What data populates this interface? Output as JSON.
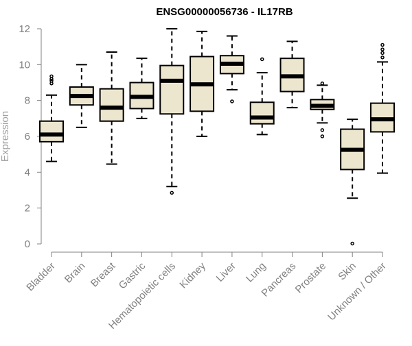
{
  "chart_data": {
    "type": "boxplot",
    "title": "ENSG00000056736 - IL17RB",
    "xlabel": "",
    "ylabel": "Expression",
    "ylim": [
      0,
      12
    ],
    "yticks": [
      0,
      2,
      4,
      6,
      8,
      10,
      12
    ],
    "grid": false,
    "legend": "none",
    "colors": {
      "box_fill": "#ede6cf",
      "stroke": "#000000",
      "axis": "#808080"
    },
    "categories": [
      "Bladder",
      "Brain",
      "Breast",
      "Gastric",
      "Hematopoietic cells",
      "Kidney",
      "Liver",
      "Lung",
      "Pancreas",
      "Prostate",
      "Skin",
      "Unknown / Other"
    ],
    "boxes": [
      {
        "name": "Bladder",
        "whisker_low": 4.6,
        "q1": 5.7,
        "median": 6.1,
        "q3": 6.85,
        "whisker_high": 8.3,
        "outliers": [
          8.95,
          9.1,
          9.2,
          9.35
        ]
      },
      {
        "name": "Brain",
        "whisker_low": 6.5,
        "q1": 7.75,
        "median": 8.25,
        "q3": 8.75,
        "whisker_high": 10.0,
        "outliers": []
      },
      {
        "name": "Breast",
        "whisker_low": 4.45,
        "q1": 6.85,
        "median": 7.6,
        "q3": 8.65,
        "whisker_high": 10.7,
        "outliers": []
      },
      {
        "name": "Gastric",
        "whisker_low": 7.0,
        "q1": 7.55,
        "median": 8.2,
        "q3": 9.0,
        "whisker_high": 10.35,
        "outliers": []
      },
      {
        "name": "Hematopoietic cells",
        "whisker_low": 3.2,
        "q1": 7.25,
        "median": 9.1,
        "q3": 9.95,
        "whisker_high": 12.0,
        "outliers": [
          2.85
        ]
      },
      {
        "name": "Kidney",
        "whisker_low": 6.0,
        "q1": 7.4,
        "median": 8.9,
        "q3": 10.45,
        "whisker_high": 11.85,
        "outliers": []
      },
      {
        "name": "Liver",
        "whisker_low": 8.6,
        "q1": 9.5,
        "median": 10.05,
        "q3": 10.5,
        "whisker_high": 11.6,
        "outliers": [
          7.95
        ]
      },
      {
        "name": "Lung",
        "whisker_low": 6.1,
        "q1": 6.7,
        "median": 7.05,
        "q3": 7.9,
        "whisker_high": 9.55,
        "outliers": [
          10.3
        ]
      },
      {
        "name": "Pancreas",
        "whisker_low": 7.6,
        "q1": 8.5,
        "median": 9.35,
        "q3": 10.35,
        "whisker_high": 11.3,
        "outliers": []
      },
      {
        "name": "Prostate",
        "whisker_low": 6.75,
        "q1": 7.5,
        "median": 7.7,
        "q3": 8.05,
        "whisker_high": 8.85,
        "outliers": [
          8.95,
          6.35,
          6.0
        ]
      },
      {
        "name": "Skin",
        "whisker_low": 2.55,
        "q1": 4.15,
        "median": 5.25,
        "q3": 6.4,
        "whisker_high": 6.95,
        "outliers": [
          0.02
        ]
      },
      {
        "name": "Unknown / Other",
        "whisker_low": 3.95,
        "q1": 6.25,
        "median": 6.95,
        "q3": 7.85,
        "whisker_high": 10.15,
        "outliers": [
          10.4,
          10.65,
          10.85,
          11.1
        ]
      }
    ]
  }
}
